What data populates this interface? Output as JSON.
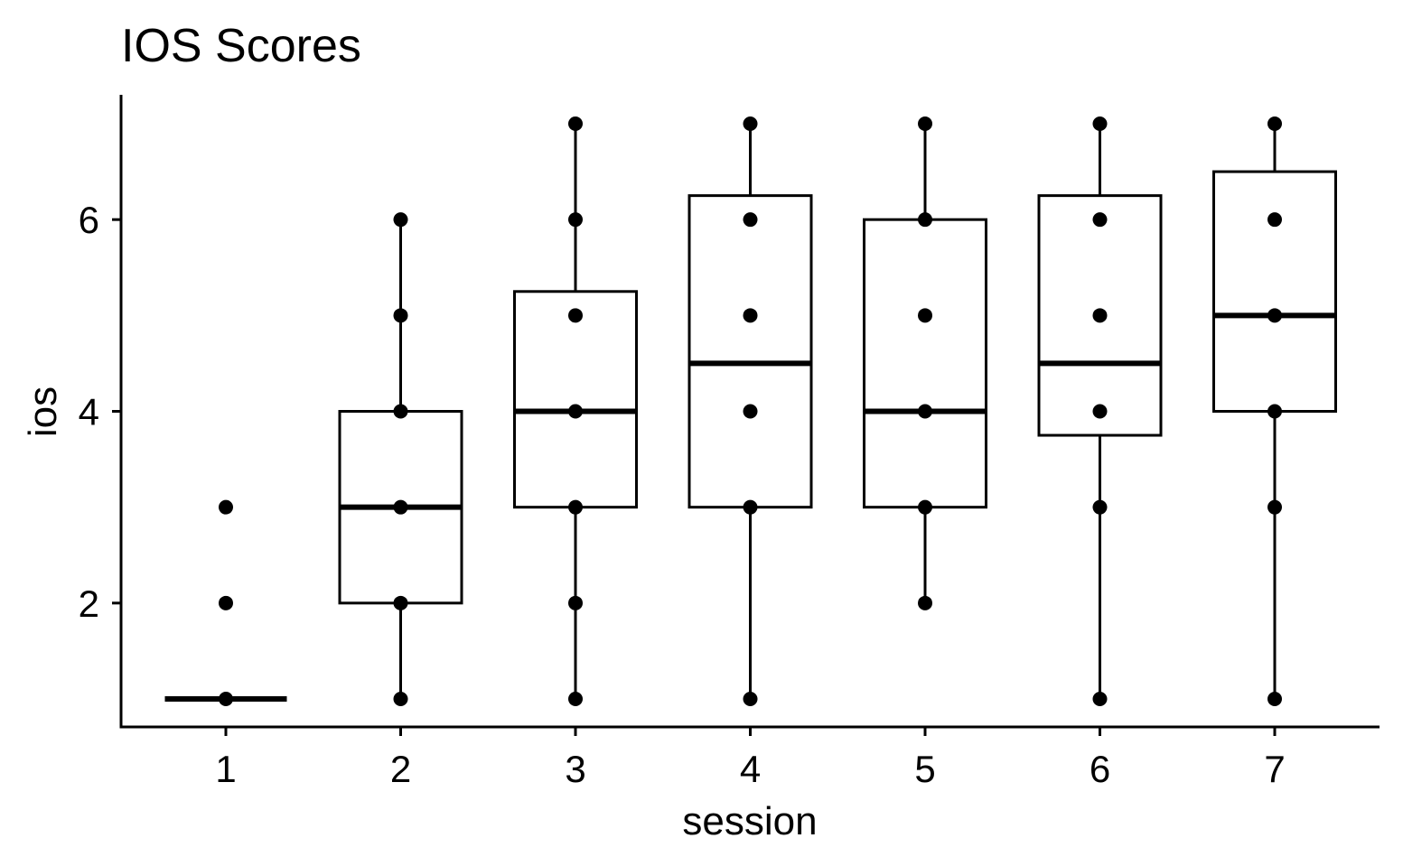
{
  "chart_data": {
    "type": "box",
    "title": "IOS Scores",
    "xlabel": "session",
    "ylabel": "ios",
    "categories": [
      "1",
      "2",
      "3",
      "4",
      "5",
      "6",
      "7"
    ],
    "y_ticks": [
      "2",
      "4",
      "6"
    ],
    "ylim": [
      0.4,
      7.3
    ],
    "grid": false,
    "boxes": [
      {
        "session": "1",
        "min": 1,
        "q1": 1,
        "median": 1,
        "q3": 1,
        "max": 1
      },
      {
        "session": "2",
        "min": 1,
        "q1": 2,
        "median": 3,
        "q3": 4,
        "max": 6
      },
      {
        "session": "3",
        "min": 1,
        "q1": 3,
        "median": 4,
        "q3": 5.25,
        "max": 7
      },
      {
        "session": "4",
        "min": 1,
        "q1": 3,
        "median": 4.5,
        "q3": 6.25,
        "max": 7
      },
      {
        "session": "5",
        "min": 2,
        "q1": 3,
        "median": 4,
        "q3": 6,
        "max": 7
      },
      {
        "session": "6",
        "min": 1,
        "q1": 3.75,
        "median": 4.5,
        "q3": 6.25,
        "max": 7
      },
      {
        "session": "7",
        "min": 1,
        "q1": 4,
        "median": 5,
        "q3": 6.5,
        "max": 7
      }
    ],
    "points": [
      {
        "session": "1",
        "values": [
          1,
          2,
          3
        ]
      },
      {
        "session": "2",
        "values": [
          1,
          2,
          3,
          4,
          5,
          6
        ]
      },
      {
        "session": "3",
        "values": [
          1,
          2,
          3,
          4,
          5,
          6,
          7
        ]
      },
      {
        "session": "4",
        "values": [
          1,
          3,
          4,
          5,
          6,
          7
        ]
      },
      {
        "session": "5",
        "values": [
          2,
          3,
          4,
          5,
          6,
          7
        ]
      },
      {
        "session": "6",
        "values": [
          1,
          3,
          4,
          5,
          6,
          7
        ]
      },
      {
        "session": "7",
        "values": [
          1,
          3,
          4,
          5,
          6,
          7
        ]
      }
    ],
    "colors": {
      "stroke": "#000000",
      "fill": "#ffffff",
      "point": "#000000"
    }
  }
}
